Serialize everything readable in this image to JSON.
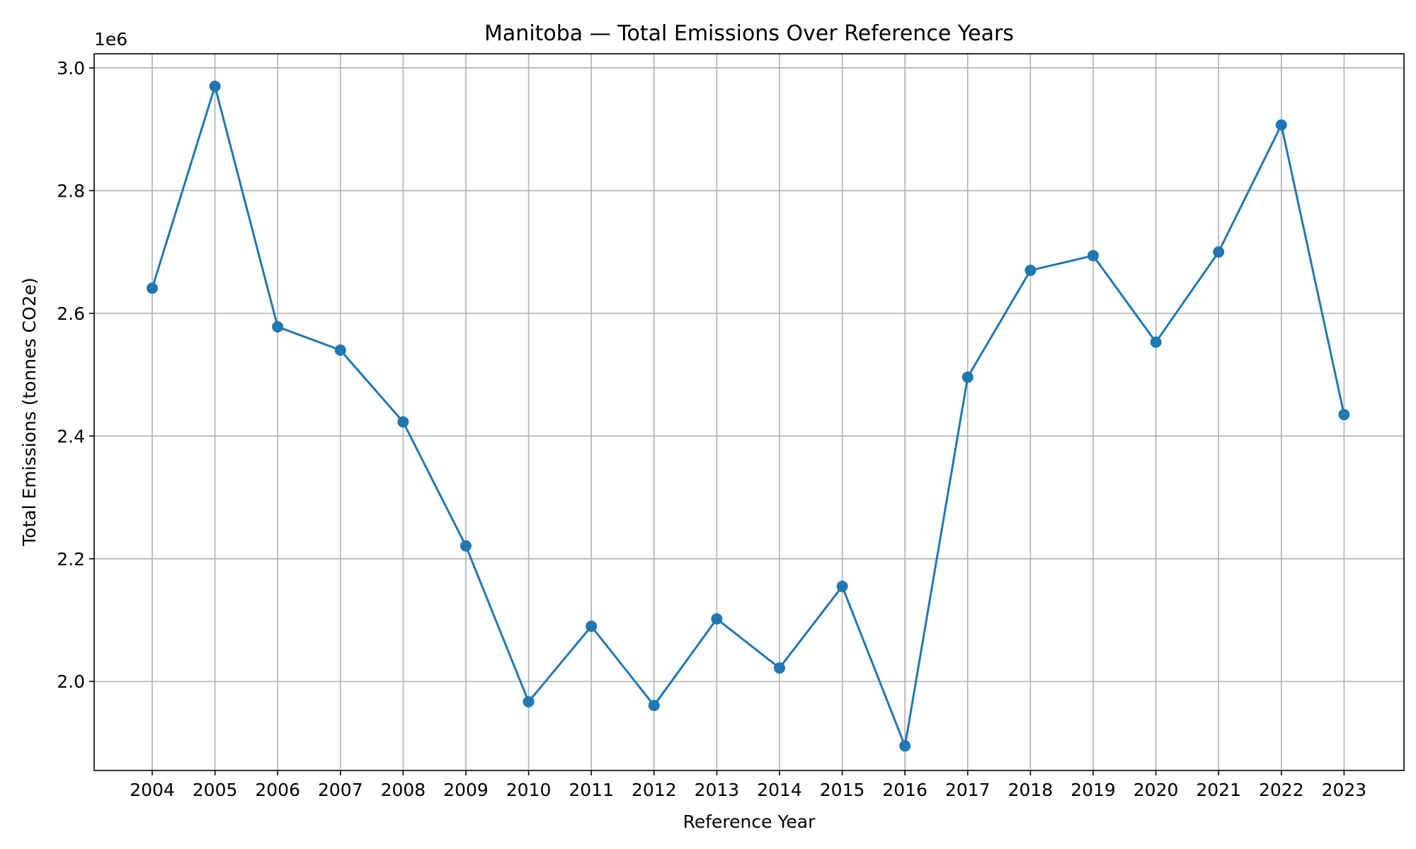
{
  "chart_data": {
    "type": "line",
    "title": "Manitoba — Total Emissions Over Reference Years",
    "xlabel": "Reference Year",
    "ylabel": "Total Emissions (tonnes CO2e)",
    "y_offset_label": "1e6",
    "x": [
      "2004",
      "2005",
      "2006",
      "2007",
      "2008",
      "2009",
      "2010",
      "2011",
      "2012",
      "2013",
      "2014",
      "2015",
      "2016",
      "2017",
      "2018",
      "2019",
      "2020",
      "2021",
      "2022",
      "2023"
    ],
    "series": [
      {
        "values": [
          2641000,
          2970000,
          2578000,
          2540000,
          2423000,
          2221000,
          1967000,
          2090000,
          1961000,
          2102000,
          2022000,
          2155000,
          1895000,
          2496000,
          2670000,
          2694000,
          2553000,
          2700000,
          2907000,
          2435000
        ]
      }
    ],
    "ylim": [
      1855000,
      3023000
    ],
    "yticks": [
      2.0,
      2.2,
      2.4,
      2.6,
      2.8,
      3.0
    ],
    "ytick_labels": [
      "2.0",
      "2.2",
      "2.4",
      "2.6",
      "2.8",
      "3.0"
    ],
    "grid": true,
    "colors": {
      "line": "#1f77b4",
      "marker": "#1f77b4",
      "grid": "#b0b0b0"
    }
  }
}
